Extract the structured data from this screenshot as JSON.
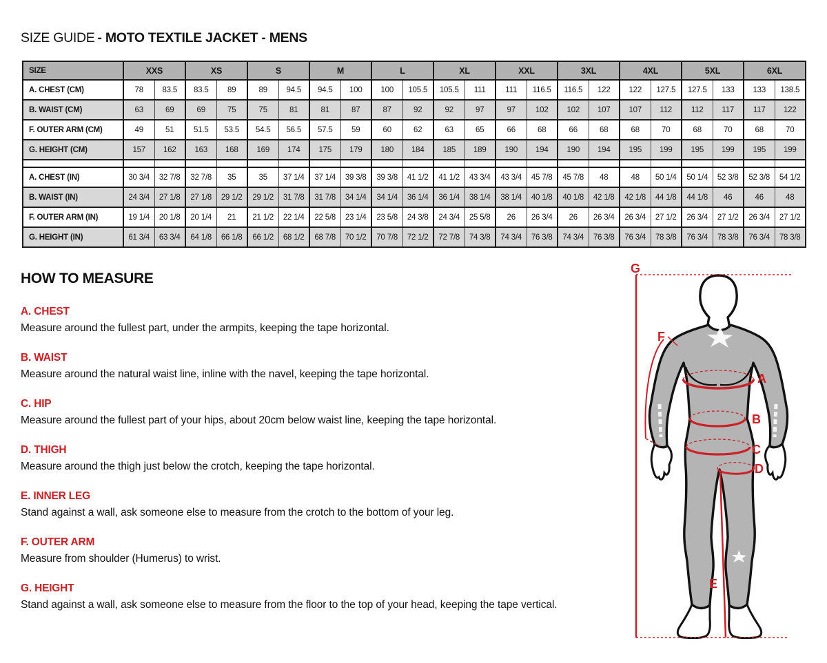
{
  "page": {
    "title_regular": "SIZE GUIDE",
    "title_bold": "- MOTO TEXTILE JACKET - MENS"
  },
  "size_table": {
    "header_label": "SIZE",
    "sizes": [
      "XXS",
      "XS",
      "S",
      "M",
      "L",
      "XL",
      "XXL",
      "3XL",
      "4XL",
      "5XL",
      "6XL"
    ],
    "rows_cm": [
      {
        "label": "A. CHEST (CM)",
        "values": [
          "78",
          "83.5",
          "83.5",
          "89",
          "89",
          "94.5",
          "94.5",
          "100",
          "100",
          "105.5",
          "105.5",
          "111",
          "111",
          "116.5",
          "116.5",
          "122",
          "122",
          "127.5",
          "127.5",
          "133",
          "133",
          "138.5"
        ]
      },
      {
        "label": "B. WAIST (CM)",
        "values": [
          "63",
          "69",
          "69",
          "75",
          "75",
          "81",
          "81",
          "87",
          "87",
          "92",
          "92",
          "97",
          "97",
          "102",
          "102",
          "107",
          "107",
          "112",
          "112",
          "117",
          "117",
          "122"
        ]
      },
      {
        "label": "F. OUTER ARM (CM)",
        "values": [
          "49",
          "51",
          "51.5",
          "53.5",
          "54.5",
          "56.5",
          "57.5",
          "59",
          "60",
          "62",
          "63",
          "65",
          "66",
          "68",
          "66",
          "68",
          "68",
          "70",
          "68",
          "70",
          "68",
          "70"
        ]
      },
      {
        "label": "G. HEIGHT (CM)",
        "values": [
          "157",
          "162",
          "163",
          "168",
          "169",
          "174",
          "175",
          "179",
          "180",
          "184",
          "185",
          "189",
          "190",
          "194",
          "190",
          "194",
          "195",
          "199",
          "195",
          "199",
          "195",
          "199"
        ]
      }
    ],
    "rows_in": [
      {
        "label": "A. CHEST (IN)",
        "values": [
          "30 3/4",
          "32 7/8",
          "32 7/8",
          "35",
          "35",
          "37 1/4",
          "37 1/4",
          "39 3/8",
          "39 3/8",
          "41 1/2",
          "41 1/2",
          "43 3/4",
          "43 3/4",
          "45 7/8",
          "45 7/8",
          "48",
          "48",
          "50 1/4",
          "50 1/4",
          "52 3/8",
          "52 3/8",
          "54 1/2"
        ]
      },
      {
        "label": "B. WAIST (IN)",
        "values": [
          "24 3/4",
          "27 1/8",
          "27 1/8",
          "29 1/2",
          "29 1/2",
          "31 7/8",
          "31 7/8",
          "34 1/4",
          "34 1/4",
          "36 1/4",
          "36 1/4",
          "38 1/4",
          "38 1/4",
          "40 1/8",
          "40 1/8",
          "42 1/8",
          "42 1/8",
          "44 1/8",
          "44 1/8",
          "46",
          "46",
          "48"
        ]
      },
      {
        "label": "F. OUTER ARM (IN)",
        "values": [
          "19 1/4",
          "20 1/8",
          "20 1/4",
          "21",
          "21 1/2",
          "22 1/4",
          "22 5/8",
          "23 1/4",
          "23 5/8",
          "24 3/8",
          "24 3/4",
          "25 5/8",
          "26",
          "26 3/4",
          "26",
          "26 3/4",
          "26 3/4",
          "27 1/2",
          "26 3/4",
          "27 1/2",
          "26 3/4",
          "27 1/2"
        ]
      },
      {
        "label": "G. HEIGHT (IN)",
        "values": [
          "61 3/4",
          "63 3/4",
          "64 1/8",
          "66 1/8",
          "66 1/2",
          "68 1/2",
          "68 7/8",
          "70 1/2",
          "70 7/8",
          "72 1/2",
          "72 7/8",
          "74 3/8",
          "74 3/4",
          "76 3/8",
          "74 3/4",
          "76 3/8",
          "76 3/4",
          "78 3/8",
          "76 3/4",
          "78 3/8",
          "76 3/4",
          "78 3/8"
        ]
      }
    ]
  },
  "how_to_measure": {
    "heading": "HOW TO MEASURE",
    "items": [
      {
        "label": "A. CHEST",
        "text": "Measure around the fullest part, under the armpits, keeping the tape horizontal."
      },
      {
        "label": "B. WAIST",
        "text": "Measure around the natural waist line, inline with the navel, keeping the tape horizontal."
      },
      {
        "label": "C. HIP",
        "text": "Measure around the fullest part of your hips, about 20cm below waist line, keeping the tape horizontal."
      },
      {
        "label": "D. THIGH",
        "text": "Measure around the thigh just below the crotch, keeping the tape horizontal."
      },
      {
        "label": "E. INNER LEG",
        "text": "Stand against a wall, ask someone else to measure from the crotch to the bottom of your leg."
      },
      {
        "label": "F. OUTER ARM",
        "text": "Measure from shoulder (Humerus) to wrist."
      },
      {
        "label": "G. HEIGHT",
        "text": "Stand against a wall, ask someone else to measure from the floor to the top of your head, keeping the tape vertical."
      }
    ]
  },
  "figure": {
    "labels": {
      "a": "A",
      "b": "B",
      "c": "C",
      "d": "D",
      "e": "E",
      "f": "F",
      "g": "G"
    }
  },
  "colors": {
    "accent_red": "#cc2127",
    "table_header_gray": "#b2b2b2",
    "table_row_gray": "#d8d8d8",
    "suit_gray": "#b4b4b4",
    "outline_black": "#121212"
  }
}
